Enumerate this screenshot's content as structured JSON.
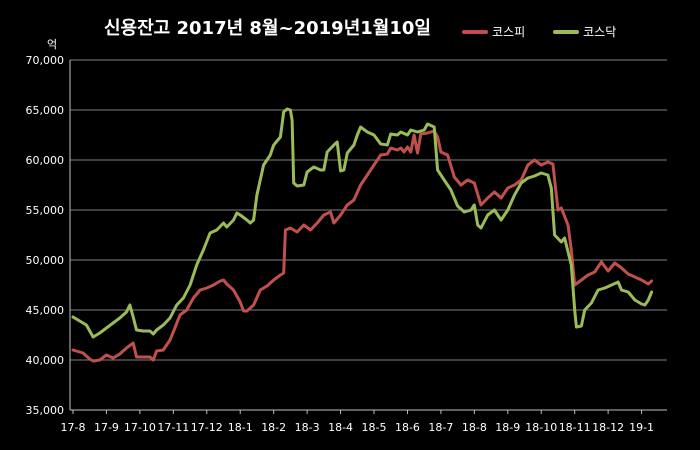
{
  "chart_data": {
    "type": "line",
    "title": "신용잔고 2017년 8월~2019년1월10일",
    "ylabel": "억",
    "ylim": [
      35000,
      70000
    ],
    "yticks": [
      "35,000",
      "40,000",
      "45,000",
      "50,000",
      "55,000",
      "60,000",
      "65,000",
      "70,000"
    ],
    "ytick_values": [
      35000,
      40000,
      45000,
      50000,
      55000,
      60000,
      65000,
      70000
    ],
    "xlabels": [
      "17-8",
      "17-9",
      "17-10",
      "17-11",
      "17-12",
      "18-1",
      "18-2",
      "18-3",
      "18-4",
      "18-5",
      "18-6",
      "18-7",
      "18-8",
      "18-9",
      "18-10",
      "18-11",
      "18-12",
      "19-1"
    ],
    "xlim": [
      0,
      17.3
    ],
    "grid": true,
    "legend": "top-right",
    "series": [
      {
        "name": "코스피",
        "color": "#c0504d",
        "points": [
          [
            0,
            41000
          ],
          [
            0.3,
            40700
          ],
          [
            0.5,
            40100
          ],
          [
            0.6,
            39900
          ],
          [
            0.8,
            40000
          ],
          [
            1.0,
            40500
          ],
          [
            1.2,
            40200
          ],
          [
            1.4,
            40600
          ],
          [
            1.6,
            41200
          ],
          [
            1.8,
            41700
          ],
          [
            1.9,
            40300
          ],
          [
            2.1,
            40300
          ],
          [
            2.3,
            40300
          ],
          [
            2.4,
            40000
          ],
          [
            2.5,
            40900
          ],
          [
            2.7,
            41000
          ],
          [
            2.9,
            42000
          ],
          [
            3.0,
            42800
          ],
          [
            3.2,
            44500
          ],
          [
            3.4,
            45000
          ],
          [
            3.6,
            46200
          ],
          [
            3.8,
            47000
          ],
          [
            4.0,
            47200
          ],
          [
            4.2,
            47500
          ],
          [
            4.4,
            47900
          ],
          [
            4.5,
            48000
          ],
          [
            4.6,
            47600
          ],
          [
            4.8,
            47000
          ],
          [
            5.0,
            45800
          ],
          [
            5.1,
            44900
          ],
          [
            5.2,
            44900
          ],
          [
            5.4,
            45500
          ],
          [
            5.6,
            47000
          ],
          [
            5.8,
            47400
          ],
          [
            6.0,
            48000
          ],
          [
            6.2,
            48500
          ],
          [
            6.3,
            48700
          ],
          [
            6.35,
            53000
          ],
          [
            6.5,
            53200
          ],
          [
            6.7,
            52800
          ],
          [
            6.9,
            53500
          ],
          [
            7.1,
            53000
          ],
          [
            7.3,
            53700
          ],
          [
            7.5,
            54500
          ],
          [
            7.7,
            54800
          ],
          [
            7.8,
            53700
          ],
          [
            8.0,
            54500
          ],
          [
            8.2,
            55500
          ],
          [
            8.4,
            56000
          ],
          [
            8.6,
            57500
          ],
          [
            8.8,
            58500
          ],
          [
            9.0,
            59500
          ],
          [
            9.2,
            60500
          ],
          [
            9.4,
            60600
          ],
          [
            9.5,
            61200
          ],
          [
            9.7,
            61000
          ],
          [
            9.8,
            61200
          ],
          [
            9.9,
            60800
          ],
          [
            10.0,
            61300
          ],
          [
            10.1,
            60800
          ],
          [
            10.2,
            62500
          ],
          [
            10.3,
            60700
          ],
          [
            10.4,
            62600
          ],
          [
            10.6,
            62700
          ],
          [
            10.8,
            62900
          ],
          [
            10.9,
            62300
          ],
          [
            11.0,
            60800
          ],
          [
            11.2,
            60500
          ],
          [
            11.4,
            58300
          ],
          [
            11.6,
            57500
          ],
          [
            11.8,
            58000
          ],
          [
            12.0,
            57700
          ],
          [
            12.2,
            55500
          ],
          [
            12.4,
            56200
          ],
          [
            12.6,
            56800
          ],
          [
            12.8,
            56200
          ],
          [
            13.0,
            57200
          ],
          [
            13.2,
            57500
          ],
          [
            13.4,
            58000
          ],
          [
            13.6,
            59500
          ],
          [
            13.8,
            60000
          ],
          [
            14.0,
            59500
          ],
          [
            14.2,
            59800
          ],
          [
            14.35,
            59600
          ],
          [
            14.5,
            55000
          ],
          [
            14.6,
            55200
          ],
          [
            14.8,
            53500
          ],
          [
            14.9,
            51000
          ],
          [
            15.0,
            47500
          ],
          [
            15.2,
            48000
          ],
          [
            15.4,
            48500
          ],
          [
            15.6,
            48800
          ],
          [
            15.8,
            49800
          ],
          [
            16.0,
            48900
          ],
          [
            16.2,
            49700
          ],
          [
            16.4,
            49200
          ],
          [
            16.6,
            48600
          ],
          [
            16.8,
            48300
          ],
          [
            17.0,
            48000
          ],
          [
            17.2,
            47600
          ],
          [
            17.3,
            47900
          ]
        ]
      },
      {
        "name": "코스닥",
        "color": "#9bbb59",
        "points": [
          [
            0,
            44300
          ],
          [
            0.2,
            43900
          ],
          [
            0.4,
            43500
          ],
          [
            0.6,
            42300
          ],
          [
            0.8,
            42700
          ],
          [
            1.0,
            43200
          ],
          [
            1.2,
            43700
          ],
          [
            1.4,
            44200
          ],
          [
            1.6,
            44800
          ],
          [
            1.7,
            45500
          ],
          [
            1.8,
            44300
          ],
          [
            1.9,
            43000
          ],
          [
            2.1,
            42900
          ],
          [
            2.3,
            42900
          ],
          [
            2.4,
            42600
          ],
          [
            2.5,
            43000
          ],
          [
            2.7,
            43500
          ],
          [
            2.9,
            44200
          ],
          [
            3.1,
            45500
          ],
          [
            3.3,
            46200
          ],
          [
            3.5,
            47500
          ],
          [
            3.7,
            49500
          ],
          [
            3.9,
            51000
          ],
          [
            4.1,
            52700
          ],
          [
            4.3,
            53000
          ],
          [
            4.5,
            53700
          ],
          [
            4.6,
            53300
          ],
          [
            4.8,
            54000
          ],
          [
            4.9,
            54700
          ],
          [
            5.0,
            54500
          ],
          [
            5.2,
            54000
          ],
          [
            5.3,
            53700
          ],
          [
            5.4,
            54000
          ],
          [
            5.5,
            56500
          ],
          [
            5.7,
            59500
          ],
          [
            5.9,
            60500
          ],
          [
            6.0,
            61500
          ],
          [
            6.2,
            62300
          ],
          [
            6.3,
            64800
          ],
          [
            6.4,
            65100
          ],
          [
            6.5,
            65000
          ],
          [
            6.55,
            64000
          ],
          [
            6.6,
            57700
          ],
          [
            6.7,
            57400
          ],
          [
            6.9,
            57500
          ],
          [
            7.0,
            58800
          ],
          [
            7.2,
            59300
          ],
          [
            7.4,
            59000
          ],
          [
            7.5,
            59000
          ],
          [
            7.6,
            60800
          ],
          [
            7.8,
            61500
          ],
          [
            7.9,
            61800
          ],
          [
            8.0,
            58900
          ],
          [
            8.1,
            59000
          ],
          [
            8.2,
            60700
          ],
          [
            8.4,
            61500
          ],
          [
            8.5,
            62500
          ],
          [
            8.6,
            63300
          ],
          [
            8.8,
            62800
          ],
          [
            9.0,
            62500
          ],
          [
            9.2,
            61600
          ],
          [
            9.4,
            61500
          ],
          [
            9.5,
            62600
          ],
          [
            9.7,
            62500
          ],
          [
            9.8,
            62800
          ],
          [
            10.0,
            62500
          ],
          [
            10.1,
            63000
          ],
          [
            10.3,
            62800
          ],
          [
            10.5,
            63000
          ],
          [
            10.6,
            63600
          ],
          [
            10.8,
            63300
          ],
          [
            10.9,
            59000
          ],
          [
            11.1,
            58000
          ],
          [
            11.3,
            57000
          ],
          [
            11.5,
            55400
          ],
          [
            11.7,
            54800
          ],
          [
            11.9,
            55000
          ],
          [
            12.0,
            55500
          ],
          [
            12.1,
            53500
          ],
          [
            12.2,
            53200
          ],
          [
            12.4,
            54500
          ],
          [
            12.6,
            55000
          ],
          [
            12.8,
            54000
          ],
          [
            13.0,
            55000
          ],
          [
            13.2,
            56500
          ],
          [
            13.4,
            57700
          ],
          [
            13.6,
            58200
          ],
          [
            13.8,
            58400
          ],
          [
            14.0,
            58700
          ],
          [
            14.2,
            58500
          ],
          [
            14.3,
            57200
          ],
          [
            14.4,
            52500
          ],
          [
            14.6,
            51800
          ],
          [
            14.7,
            52200
          ],
          [
            14.9,
            49500
          ],
          [
            15.0,
            45000
          ],
          [
            15.05,
            43300
          ],
          [
            15.2,
            43400
          ],
          [
            15.3,
            45000
          ],
          [
            15.5,
            45700
          ],
          [
            15.7,
            47000
          ],
          [
            15.9,
            47200
          ],
          [
            16.1,
            47500
          ],
          [
            16.3,
            47800
          ],
          [
            16.4,
            47000
          ],
          [
            16.6,
            46800
          ],
          [
            16.8,
            46000
          ],
          [
            17.0,
            45600
          ],
          [
            17.1,
            45500
          ],
          [
            17.2,
            46000
          ],
          [
            17.3,
            46800
          ]
        ]
      }
    ]
  }
}
